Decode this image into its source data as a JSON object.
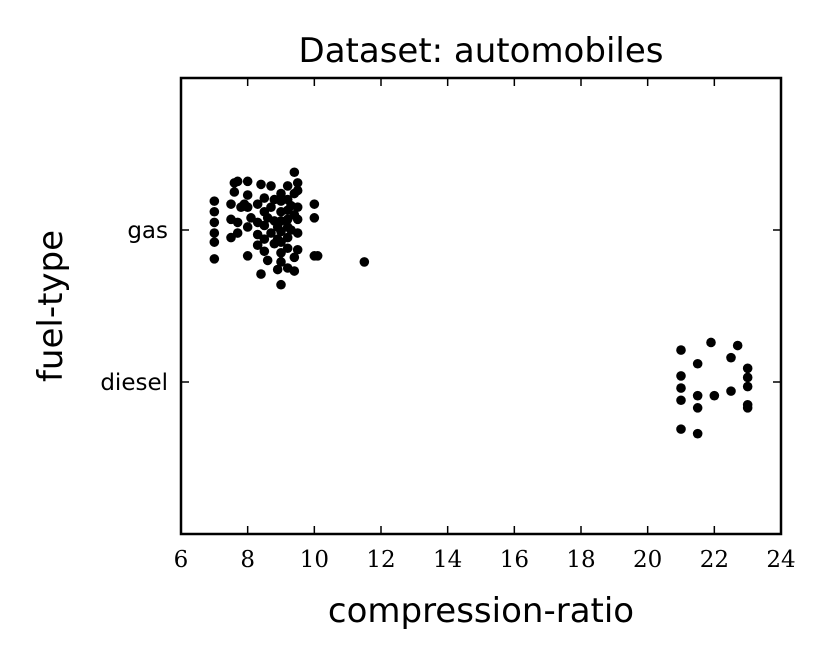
{
  "chart_data": {
    "type": "scatter",
    "title": "Dataset: automobiles",
    "xlabel": "compression-ratio",
    "ylabel": "fuel-type",
    "xlim": [
      6,
      24
    ],
    "x_ticks": [
      6,
      8,
      10,
      12,
      14,
      16,
      18,
      20,
      22,
      24
    ],
    "y_categories": [
      "gas",
      "diesel"
    ],
    "grid": false,
    "legend": "none",
    "marker_color": "#000000",
    "jitter": "categorical y-values are jittered vertically around each category",
    "series": [
      {
        "category": "gas",
        "points": [
          [
            7.0,
            0.19
          ],
          [
            7.0,
            0.12
          ],
          [
            7.0,
            0.05
          ],
          [
            7.0,
            -0.02
          ],
          [
            7.0,
            -0.08
          ],
          [
            7.0,
            -0.19
          ],
          [
            7.5,
            0.17
          ],
          [
            7.5,
            0.07
          ],
          [
            7.5,
            -0.05
          ],
          [
            7.6,
            0.31
          ],
          [
            7.6,
            0.25
          ],
          [
            7.7,
            0.32
          ],
          [
            7.7,
            0.05
          ],
          [
            7.7,
            -0.02
          ],
          [
            7.8,
            0.15
          ],
          [
            7.9,
            0.17
          ],
          [
            8.0,
            0.23
          ],
          [
            8.0,
            0.15
          ],
          [
            8.0,
            0.02
          ],
          [
            8.0,
            -0.17
          ],
          [
            8.0,
            0.32
          ],
          [
            8.1,
            0.08
          ],
          [
            8.3,
            0.17
          ],
          [
            8.3,
            0.05
          ],
          [
            8.3,
            -0.03
          ],
          [
            8.3,
            -0.1
          ],
          [
            8.4,
            0.3
          ],
          [
            8.4,
            -0.29
          ],
          [
            8.5,
            0.21
          ],
          [
            8.5,
            0.12
          ],
          [
            8.5,
            0.03
          ],
          [
            8.5,
            -0.06
          ],
          [
            8.5,
            -0.14
          ],
          [
            8.6,
            -0.2
          ],
          [
            8.6,
            0.08
          ],
          [
            8.7,
            0.29
          ],
          [
            8.7,
            0.15
          ],
          [
            8.7,
            -0.02
          ],
          [
            8.8,
            -0.09
          ],
          [
            8.8,
            0.2
          ],
          [
            8.8,
            0.06
          ],
          [
            8.9,
            0.02
          ],
          [
            8.9,
            -0.06
          ],
          [
            8.9,
            -0.26
          ],
          [
            9.0,
            0.19
          ],
          [
            9.0,
            0.12
          ],
          [
            9.0,
            0.06
          ],
          [
            9.0,
            -0.01
          ],
          [
            9.0,
            -0.08
          ],
          [
            9.0,
            -0.15
          ],
          [
            9.0,
            -0.21
          ],
          [
            9.0,
            -0.36
          ],
          [
            9.0,
            0.24
          ],
          [
            9.2,
            0.29
          ],
          [
            9.2,
            0.2
          ],
          [
            9.2,
            0.13
          ],
          [
            9.2,
            0.07
          ],
          [
            9.2,
            0.02
          ],
          [
            9.2,
            -0.05
          ],
          [
            9.2,
            -0.12
          ],
          [
            9.2,
            -0.25
          ],
          [
            9.3,
            0.16
          ],
          [
            9.3,
            0.0
          ],
          [
            9.4,
            0.38
          ],
          [
            9.4,
            0.24
          ],
          [
            9.4,
            0.1
          ],
          [
            9.4,
            -0.18
          ],
          [
            9.4,
            -0.27
          ],
          [
            9.5,
            0.26
          ],
          [
            9.5,
            0.15
          ],
          [
            9.5,
            0.07
          ],
          [
            9.5,
            -0.02
          ],
          [
            9.5,
            -0.13
          ],
          [
            9.5,
            0.31
          ],
          [
            10.0,
            0.17
          ],
          [
            10.0,
            0.08
          ],
          [
            10.0,
            -0.17
          ],
          [
            10.1,
            -0.17
          ],
          [
            11.5,
            -0.21
          ]
        ]
      },
      {
        "category": "diesel",
        "points": [
          [
            21.0,
            0.21
          ],
          [
            21.0,
            0.04
          ],
          [
            21.0,
            -0.04
          ],
          [
            21.0,
            -0.12
          ],
          [
            21.0,
            -0.31
          ],
          [
            21.5,
            0.12
          ],
          [
            21.5,
            -0.09
          ],
          [
            21.5,
            -0.17
          ],
          [
            21.5,
            -0.34
          ],
          [
            21.9,
            0.26
          ],
          [
            22.0,
            -0.09
          ],
          [
            22.5,
            0.16
          ],
          [
            22.5,
            -0.06
          ],
          [
            22.7,
            0.24
          ],
          [
            23.0,
            0.09
          ],
          [
            23.0,
            0.03
          ],
          [
            23.0,
            -0.03
          ],
          [
            23.0,
            -0.15
          ],
          [
            23.0,
            -0.17
          ]
        ]
      }
    ]
  }
}
